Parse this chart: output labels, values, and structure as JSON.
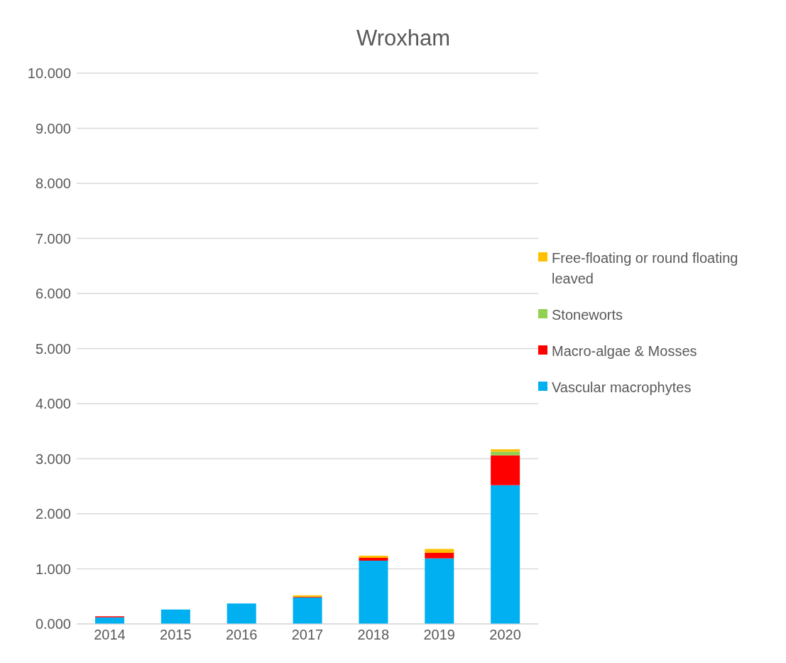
{
  "chart_data": {
    "type": "bar",
    "title": "Wroxham",
    "stacked": true,
    "categories": [
      "2014",
      "2015",
      "2016",
      "2017",
      "2018",
      "2019",
      "2020"
    ],
    "series": [
      {
        "name": "Vascular macrophytes",
        "color": "#00b0f0",
        "values": [
          0.12,
          0.26,
          0.37,
          0.48,
          1.15,
          1.19,
          2.52
        ]
      },
      {
        "name": "Macro-algae & Mosses",
        "color": "#ff0000",
        "values": [
          0.02,
          0,
          0,
          0.01,
          0.05,
          0.1,
          0.54
        ]
      },
      {
        "name": "Stoneworts",
        "color": "#92d050",
        "values": [
          0,
          0,
          0,
          0,
          0,
          0,
          0.07
        ]
      },
      {
        "name": "Free-floating or round floating leaved",
        "color": "#ffc000",
        "values": [
          0,
          0,
          0,
          0.03,
          0.04,
          0.07,
          0.04
        ]
      }
    ],
    "ylim": [
      0,
      10
    ],
    "yticks": [
      {
        "value": 0,
        "label": "0.000"
      },
      {
        "value": 1,
        "label": "1.000"
      },
      {
        "value": 2,
        "label": "2.000"
      },
      {
        "value": 3,
        "label": "3.000"
      },
      {
        "value": 4,
        "label": "4.000"
      },
      {
        "value": 5,
        "label": "5.000"
      },
      {
        "value": 6,
        "label": "6.000"
      },
      {
        "value": 7,
        "label": "7.000"
      },
      {
        "value": 8,
        "label": "8.000"
      },
      {
        "value": 9,
        "label": "9.000"
      },
      {
        "value": 10,
        "label": "10.000"
      }
    ],
    "grid": "y",
    "legend": "right"
  }
}
